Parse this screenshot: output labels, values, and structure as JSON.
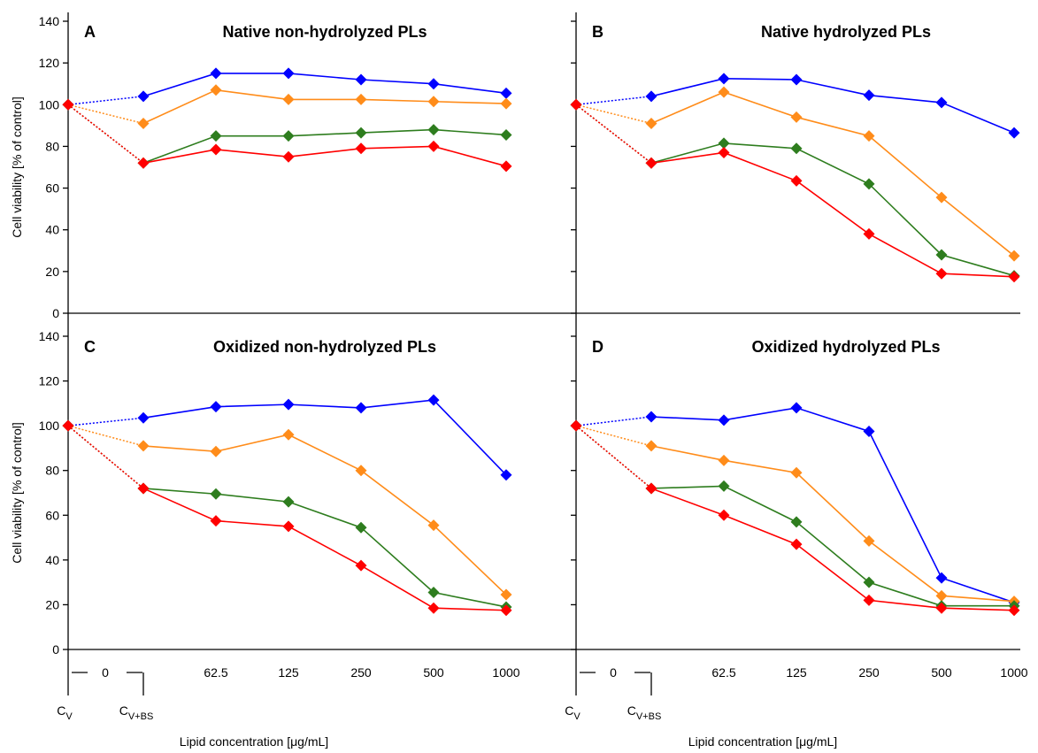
{
  "y_axis": {
    "label": "Cell viability [% of control]",
    "ticks": [
      0,
      20,
      40,
      60,
      80,
      100,
      120,
      140
    ],
    "ylim": [
      0,
      140
    ]
  },
  "x_axis": {
    "label": "Lipid concentration [μg/mL]",
    "zero_label": "0",
    "cv_main": "C",
    "cv_sub": "V",
    "cvbs_main": "C",
    "cvbs_sub": "V+BS",
    "conc_labels": [
      "62.5",
      "125",
      "250",
      "500",
      "1000"
    ]
  },
  "chart_data": [
    {
      "type": "line",
      "letter": "A",
      "title": "Native non-hydrolyzed PLs",
      "categories": [
        "C_V",
        "C_V+BS",
        "62.5",
        "125",
        "250",
        "500",
        "1000"
      ],
      "ylim": [
        0,
        140
      ],
      "series": [
        {
          "color": "#0000ff",
          "values": [
            100,
            104,
            115,
            115,
            112,
            110,
            105.5
          ]
        },
        {
          "color": "#ff8c1a",
          "values": [
            100,
            91,
            107,
            102.5,
            102.5,
            101.5,
            100.5
          ]
        },
        {
          "color": "#2e7d1e",
          "values": [
            100,
            72,
            85,
            85,
            86.5,
            88,
            85.5
          ]
        },
        {
          "color": "#ff0000",
          "values": [
            100,
            72,
            78.5,
            75,
            79,
            80,
            70.5
          ]
        }
      ]
    },
    {
      "type": "line",
      "letter": "B",
      "title": "Native hydrolyzed PLs",
      "categories": [
        "C_V",
        "C_V+BS",
        "62.5",
        "125",
        "250",
        "500",
        "1000"
      ],
      "ylim": [
        0,
        140
      ],
      "series": [
        {
          "color": "#0000ff",
          "values": [
            100,
            104,
            112.5,
            112,
            104.5,
            101,
            86.5
          ]
        },
        {
          "color": "#ff8c1a",
          "values": [
            100,
            91,
            106,
            94,
            85,
            55.5,
            27.5
          ]
        },
        {
          "color": "#2e7d1e",
          "values": [
            100,
            72,
            81.5,
            79,
            62,
            28,
            18
          ]
        },
        {
          "color": "#ff0000",
          "values": [
            100,
            72,
            77,
            63.5,
            38,
            19,
            17.5
          ]
        }
      ]
    },
    {
      "type": "line",
      "letter": "C",
      "title": "Oxidized non-hydrolyzed PLs",
      "categories": [
        "C_V",
        "C_V+BS",
        "62.5",
        "125",
        "250",
        "500",
        "1000"
      ],
      "ylim": [
        0,
        140
      ],
      "series": [
        {
          "color": "#0000ff",
          "values": [
            100,
            103.5,
            108.5,
            109.5,
            108,
            111.5,
            78
          ]
        },
        {
          "color": "#ff8c1a",
          "values": [
            100,
            91,
            88.5,
            96,
            80,
            55.5,
            24.5
          ]
        },
        {
          "color": "#2e7d1e",
          "values": [
            100,
            72,
            69.5,
            66,
            54.5,
            25.5,
            19
          ]
        },
        {
          "color": "#ff0000",
          "values": [
            100,
            72,
            57.5,
            55,
            37.5,
            18.5,
            17.5
          ]
        }
      ]
    },
    {
      "type": "line",
      "letter": "D",
      "title": "Oxidized hydrolyzed PLs",
      "categories": [
        "C_V",
        "C_V+BS",
        "62.5",
        "125",
        "250",
        "500",
        "1000"
      ],
      "ylim": [
        0,
        140
      ],
      "series": [
        {
          "color": "#0000ff",
          "values": [
            100,
            104,
            102.5,
            108,
            97.5,
            32,
            21
          ]
        },
        {
          "color": "#ff8c1a",
          "values": [
            100,
            91,
            84.5,
            79,
            48.5,
            24,
            21.5
          ]
        },
        {
          "color": "#2e7d1e",
          "values": [
            100,
            72,
            73,
            57,
            30,
            19.5,
            19.5
          ]
        },
        {
          "color": "#ff0000",
          "values": [
            100,
            72,
            60,
            47,
            22,
            18.5,
            17.5
          ]
        }
      ]
    }
  ]
}
